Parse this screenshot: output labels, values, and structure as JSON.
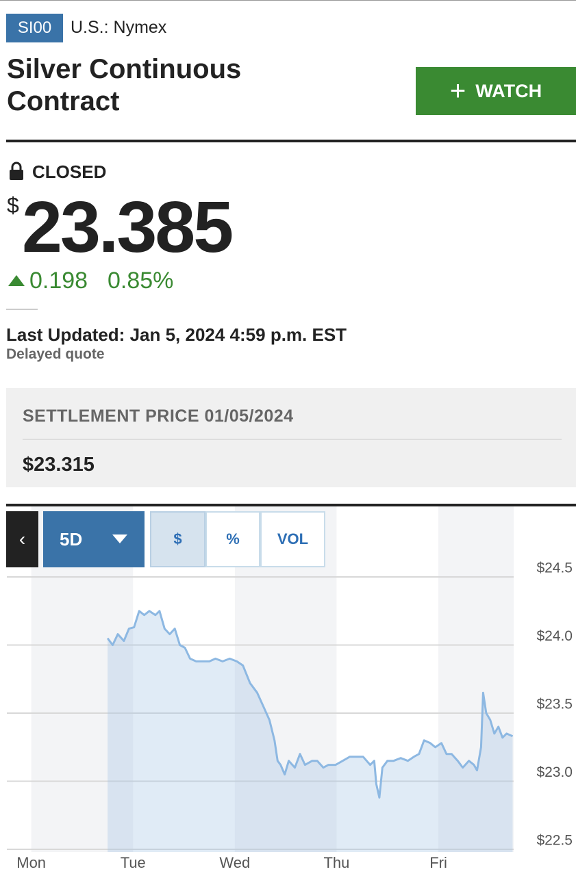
{
  "header": {
    "symbol": "SI00",
    "exchange": "U.S.: Nymex",
    "title": "Silver Continuous Contract",
    "watch_button": "WATCH"
  },
  "quote": {
    "status": "CLOSED",
    "currency_symbol": "$",
    "price": "23.385",
    "change": "0.198",
    "change_percent": "0.85%",
    "last_updated": "Last Updated: Jan 5, 2024 4:59 p.m. EST",
    "delay_note": "Delayed quote"
  },
  "settlement": {
    "label": "SETTLEMENT PRICE 01/05/2024",
    "value": "$23.315"
  },
  "chart_controls": {
    "range": "5D",
    "modes": [
      "$",
      "%",
      "VOL"
    ]
  },
  "chart_data": {
    "type": "area",
    "line_color": "#8db8e2",
    "fill_color": "rgba(160,195,228,0.33)",
    "grid": true,
    "xlim": [
      -0.24,
      4.74
    ],
    "xticks": [
      {
        "value": 0,
        "label": "Mon"
      },
      {
        "value": 1,
        "label": "Tue"
      },
      {
        "value": 2,
        "label": "Wed"
      },
      {
        "value": 3,
        "label": "Thu"
      },
      {
        "value": 4,
        "label": "Fri"
      }
    ],
    "ylim": [
      22.48,
      24.5
    ],
    "yticks": [
      {
        "value": 22.5,
        "label": "$22.5"
      },
      {
        "value": 23.0,
        "label": "$23.0"
      },
      {
        "value": 23.5,
        "label": "$23.5"
      },
      {
        "value": 24.0,
        "label": "$24.0"
      },
      {
        "value": 24.5,
        "label": "$24.5"
      }
    ],
    "x": [
      0.75,
      0.8,
      0.85,
      0.91,
      0.96,
      1.01,
      1.06,
      1.11,
      1.16,
      1.22,
      1.26,
      1.31,
      1.36,
      1.41,
      1.46,
      1.51,
      1.56,
      1.62,
      1.68,
      1.75,
      1.81,
      1.88,
      1.95,
      2.02,
      2.08,
      2.15,
      2.22,
      2.28,
      2.34,
      2.39,
      2.42,
      2.45,
      2.49,
      2.53,
      2.59,
      2.64,
      2.69,
      2.76,
      2.81,
      2.87,
      2.92,
      2.99,
      3.06,
      3.13,
      3.19,
      3.26,
      3.33,
      3.37,
      3.39,
      3.42,
      3.45,
      3.5,
      3.56,
      3.63,
      3.7,
      3.76,
      3.81,
      3.86,
      3.92,
      3.97,
      4.03,
      4.08,
      4.13,
      4.19,
      4.24,
      4.3,
      4.35,
      4.38,
      4.42,
      4.44,
      4.47,
      4.51,
      4.55,
      4.59,
      4.63,
      4.67,
      4.73
    ],
    "values": [
      24.05,
      24.0,
      24.08,
      24.03,
      24.12,
      24.13,
      24.25,
      24.22,
      24.25,
      24.22,
      24.25,
      24.12,
      24.08,
      24.12,
      24.0,
      23.98,
      23.9,
      23.88,
      23.88,
      23.88,
      23.9,
      23.88,
      23.9,
      23.88,
      23.85,
      23.72,
      23.65,
      23.55,
      23.45,
      23.3,
      23.15,
      23.12,
      23.05,
      23.15,
      23.1,
      23.2,
      23.12,
      23.15,
      23.15,
      23.1,
      23.12,
      23.12,
      23.15,
      23.18,
      23.18,
      23.18,
      23.12,
      23.15,
      22.98,
      22.88,
      23.1,
      23.15,
      23.15,
      23.17,
      23.15,
      23.18,
      23.2,
      23.3,
      23.28,
      23.25,
      23.28,
      23.2,
      23.2,
      23.15,
      23.1,
      23.15,
      23.12,
      23.08,
      23.25,
      23.65,
      23.5,
      23.45,
      23.35,
      23.4,
      23.32,
      23.35,
      23.33
    ]
  }
}
